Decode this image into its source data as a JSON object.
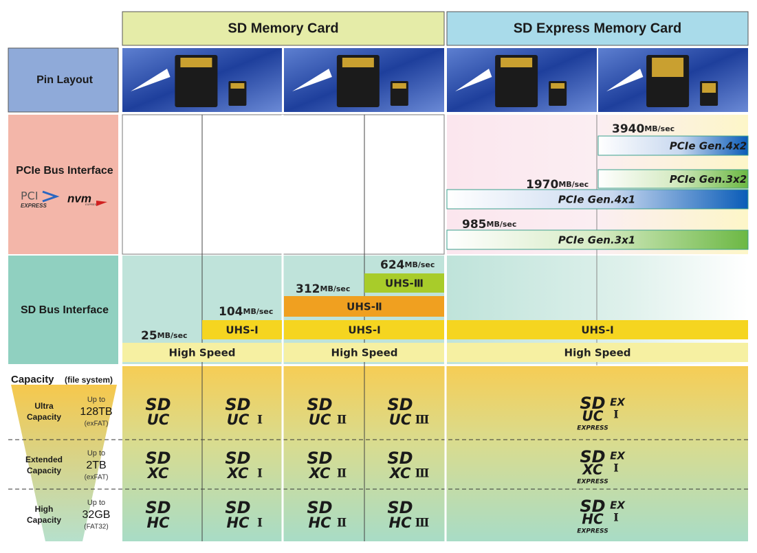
{
  "header": {
    "sd": "SD Memory Card",
    "express": "SD Express Memory Card"
  },
  "rows": {
    "pin_layout": "Pin Layout",
    "pcie": "PCIe Bus Interface",
    "sd_bus": "SD Bus Interface",
    "capacity": "Capacity",
    "file_system": "(file system)"
  },
  "pcie_logos": {
    "pci": "PCI",
    "pci_sub": "EXPRESS",
    "nvm": "nvm",
    "nvm_sub": "EXPRESS"
  },
  "speeds": [
    {
      "value": "3940",
      "unit": "MB/sec"
    },
    {
      "value": "1970",
      "unit": "MB/sec"
    },
    {
      "value": "985",
      "unit": "MB/sec"
    },
    {
      "value": "624",
      "unit": "MB/sec"
    },
    {
      "value": "312",
      "unit": "MB/sec"
    },
    {
      "value": "104",
      "unit": "MB/sec"
    },
    {
      "value": "25",
      "unit": "MB/sec"
    }
  ],
  "buses": [
    "PCIe Gen.4x2",
    "PCIe Gen.3x2",
    "PCIe Gen.4x1",
    "PCIe Gen.3x1",
    "UHS-Ⅲ",
    "UHS-Ⅱ",
    "UHS-I",
    "High Speed"
  ],
  "tiers": [
    {
      "name": [
        "Ultra",
        "Capacity"
      ],
      "up_to": "Up to",
      "size": "128TB",
      "fs": "(exFAT)"
    },
    {
      "name": [
        "Extended",
        "Capacity"
      ],
      "up_to": "Up to",
      "size": "2TB",
      "fs": "(exFAT)"
    },
    {
      "name": [
        "High",
        "Capacity"
      ],
      "up_to": "Up to",
      "size": "32GB",
      "fs": "(FAT32)"
    }
  ],
  "logo": {
    "sd": "SD",
    "classes": [
      "UC",
      "XC",
      "HC"
    ],
    "numerals": [
      "I",
      "Ⅱ",
      "Ⅲ"
    ],
    "ex": "EX",
    "express": "EXPRESS"
  }
}
